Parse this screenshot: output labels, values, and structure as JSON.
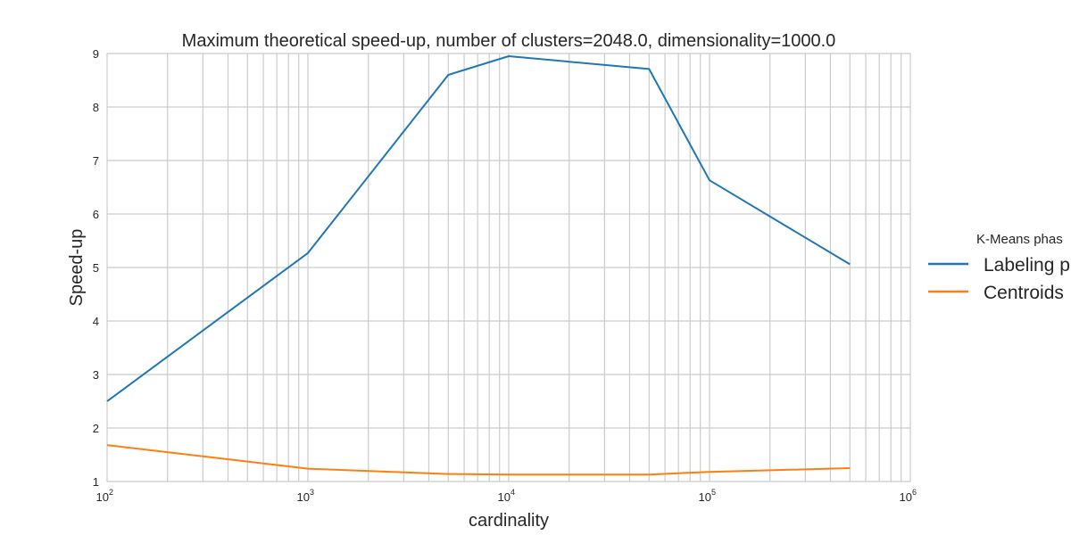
{
  "chart_data": {
    "type": "line",
    "title": "Maximum theoretical speed-up, number of clusters=2048.0, dimensionality=1000.0",
    "xlabel": "cardinality",
    "ylabel": "Speed-up",
    "xscale": "log",
    "xlim": [
      100,
      1000000
    ],
    "ylim": [
      1,
      9
    ],
    "x_ticks": [
      {
        "base": "10",
        "exp": "2"
      },
      {
        "base": "10",
        "exp": "3"
      },
      {
        "base": "10",
        "exp": "4"
      },
      {
        "base": "10",
        "exp": "5"
      },
      {
        "base": "10",
        "exp": "6"
      }
    ],
    "y_ticks": [
      "1",
      "2",
      "3",
      "4",
      "5",
      "6",
      "7",
      "8",
      "9"
    ],
    "grid": true,
    "legend": {
      "title": "K-Means phas",
      "placement": "outside-right"
    },
    "x": [
      100,
      1000,
      5000,
      10000,
      50000,
      100000,
      500000
    ],
    "series": [
      {
        "name": "Labeling p",
        "color": "#1f77b4",
        "values": [
          2.5,
          5.27,
          8.6,
          8.95,
          8.71,
          6.63,
          5.06
        ]
      },
      {
        "name": "Centroids",
        "color": "#ff7f0e",
        "values": [
          1.68,
          1.24,
          1.14,
          1.13,
          1.13,
          1.18,
          1.25
        ]
      }
    ]
  }
}
